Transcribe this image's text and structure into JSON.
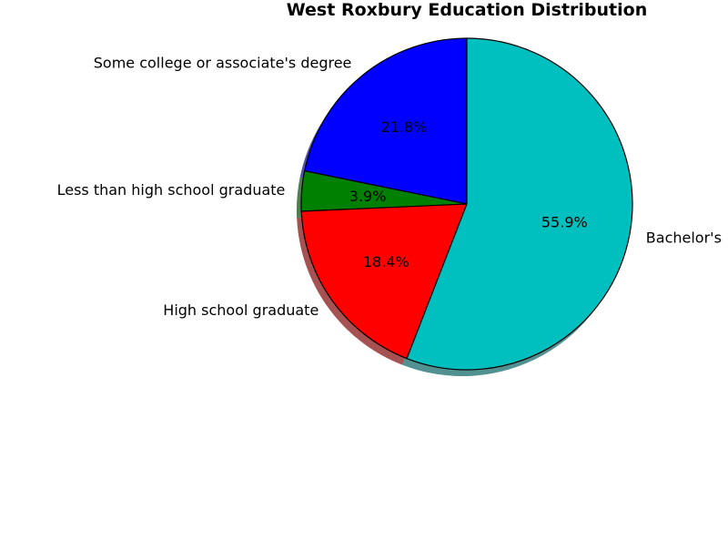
{
  "chart_data": {
    "type": "pie",
    "title": "West Roxbury Education Distribution",
    "start_angle_deg": 90,
    "direction": "counterclockwise",
    "shadow": true,
    "slices": [
      {
        "label": "Some college or associate's degree",
        "value": 21.8,
        "pct_label": "21.8%",
        "color": "#0000ff"
      },
      {
        "label": "Less than high school graduate",
        "value": 3.9,
        "pct_label": "3.9%",
        "color": "#008000"
      },
      {
        "label": "High school graduate",
        "value": 18.4,
        "pct_label": "18.4%",
        "color": "#ff0000"
      },
      {
        "label": "Bachelor's",
        "value": 55.9,
        "pct_label": "55.9%",
        "color": "#00bfbf"
      }
    ]
  }
}
